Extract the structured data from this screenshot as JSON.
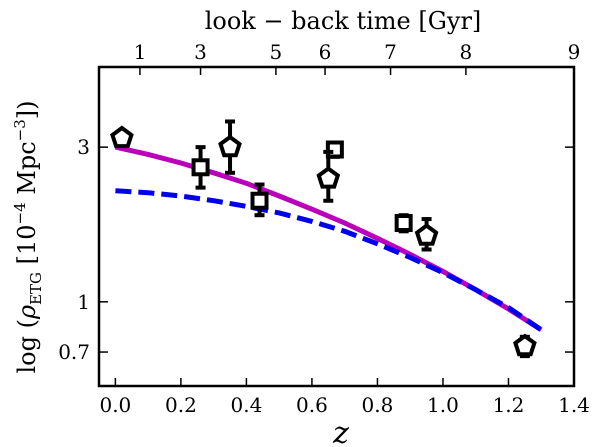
{
  "chart_data": {
    "type": "scatter",
    "xlabel": "z",
    "ylabel": "log (ρ_ETG [10^−4 Mpc^−3])",
    "ylabel_parts": {
      "prefix": "log (",
      "rho": "ρ",
      "sub": "ETG",
      "mid": " [10",
      "exp": "−4",
      "unit": " Mpc",
      "exp2": "−3",
      "suffix": "])"
    },
    "top_axis_label": "look − back time [Gyr]",
    "xlim": [
      -0.05,
      1.4
    ],
    "ylim_log": [
      0.55,
      5.3
    ],
    "x_ticks": [
      0.0,
      0.2,
      0.4,
      0.6,
      0.8,
      1.0,
      1.2,
      1.4
    ],
    "x_tick_labels": [
      "0.0",
      "0.2",
      "0.4",
      "0.6",
      "0.8",
      "1.0",
      "1.2",
      "1.4"
    ],
    "y_ticks": [
      0.7,
      1,
      3
    ],
    "y_tick_labels": [
      "0.7",
      "1",
      "3"
    ],
    "top_ticks_z": [
      0.075,
      0.26,
      0.49,
      0.64,
      0.84,
      1.07,
      1.4
    ],
    "top_tick_labels": [
      "1",
      "3",
      "5",
      "6",
      "7",
      "8",
      "9"
    ],
    "series": [
      {
        "name": "model (magenta solid)",
        "style": "line",
        "color": "#bb00bb",
        "x": [
          0.0,
          0.1,
          0.2,
          0.3,
          0.4,
          0.5,
          0.6,
          0.7,
          0.8,
          0.9,
          1.0,
          1.1,
          1.2,
          1.3
        ],
        "y": [
          3.0,
          2.85,
          2.68,
          2.5,
          2.32,
          2.12,
          1.93,
          1.75,
          1.57,
          1.4,
          1.24,
          1.09,
          0.95,
          0.82
        ]
      },
      {
        "name": "model (blue dashed)",
        "style": "dashed",
        "color": "#0000ee",
        "x": [
          0.0,
          0.1,
          0.2,
          0.3,
          0.4,
          0.5,
          0.6,
          0.7,
          0.8,
          0.9,
          1.0,
          1.1,
          1.2,
          1.3
        ],
        "y": [
          2.2,
          2.17,
          2.12,
          2.05,
          1.97,
          1.88,
          1.77,
          1.65,
          1.51,
          1.37,
          1.23,
          1.09,
          0.96,
          0.82
        ]
      },
      {
        "name": "data (squares)",
        "style": "markers",
        "marker": "square",
        "color": "#000000",
        "points": [
          {
            "x": 0.26,
            "y": 2.6,
            "lo": 2.25,
            "hi": 3.0
          },
          {
            "x": 0.44,
            "y": 2.05,
            "lo": 1.85,
            "hi": 2.3
          },
          {
            "x": 0.67,
            "y": 2.95,
            "lo": 2.8,
            "hi": 3.1
          },
          {
            "x": 0.88,
            "y": 1.75,
            "lo": 1.65,
            "hi": 1.85
          }
        ]
      },
      {
        "name": "data (pentagons)",
        "style": "markers",
        "marker": "pentagon",
        "color": "#000000",
        "points": [
          {
            "x": 0.02,
            "y": 3.2,
            "lo": 3.05,
            "hi": 3.35
          },
          {
            "x": 0.35,
            "y": 3.0,
            "lo": 2.5,
            "hi": 3.6
          },
          {
            "x": 0.65,
            "y": 2.4,
            "lo": 2.05,
            "hi": 2.9
          },
          {
            "x": 0.95,
            "y": 1.6,
            "lo": 1.45,
            "hi": 1.8
          },
          {
            "x": 1.25,
            "y": 0.73,
            "lo": 0.68,
            "hi": 0.78
          }
        ]
      }
    ]
  }
}
